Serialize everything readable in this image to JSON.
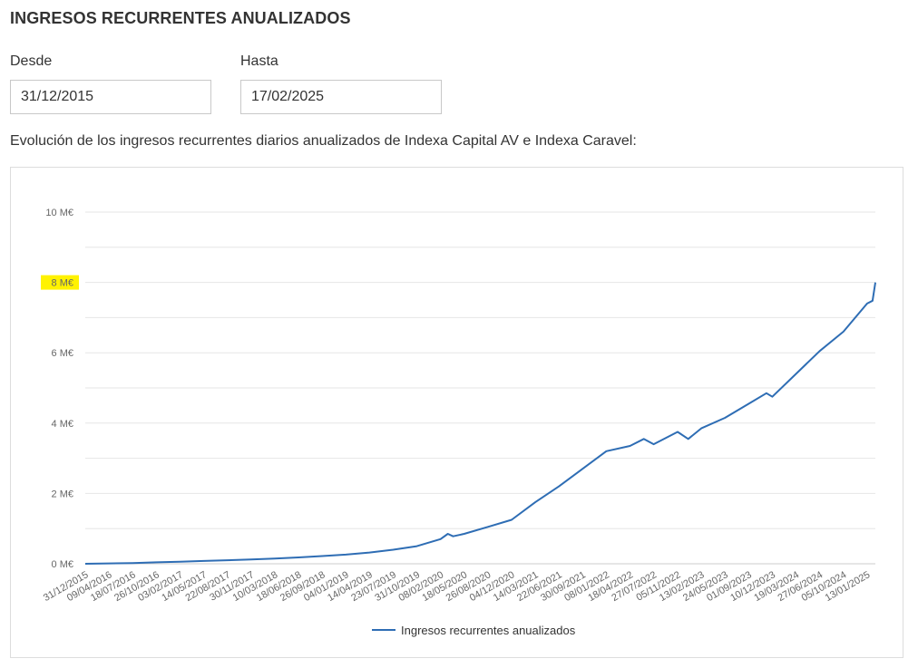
{
  "page": {
    "title": "INGRESOS RECURRENTES ANUALIZADOS",
    "desde_label": "Desde",
    "desde_value": "31/12/2015",
    "hasta_label": "Hasta",
    "hasta_value": "17/02/2025",
    "description": "Evolución de los ingresos recurrentes diarios anualizados de Indexa Capital AV e Indexa Caravel:"
  },
  "chart_data": {
    "type": "line",
    "ylim": [
      0,
      10
    ],
    "yticks": [
      0,
      2,
      4,
      6,
      8,
      10
    ],
    "ytick_labels": [
      "0 M€",
      "2 M€",
      "4 M€",
      "6 M€",
      "8 M€",
      "10 M€"
    ],
    "highlighted_ytick": "8 M€",
    "highlight_color": "#fff200",
    "grid": true,
    "legend_position": "bottom-center",
    "x_dates": [
      "31/12/2015",
      "09/04/2016",
      "18/07/2016",
      "26/10/2016",
      "03/02/2017",
      "14/05/2017",
      "22/08/2017",
      "30/11/2017",
      "10/03/2018",
      "18/06/2018",
      "26/09/2018",
      "04/01/2019",
      "14/04/2019",
      "23/07/2019",
      "31/10/2019",
      "08/02/2020",
      "18/05/2020",
      "26/08/2020",
      "04/12/2020",
      "14/03/2021",
      "22/06/2021",
      "30/09/2021",
      "08/01/2022",
      "18/04/2022",
      "27/07/2022",
      "05/11/2022",
      "13/02/2023",
      "24/05/2023",
      "01/09/2023",
      "10/12/2023",
      "19/03/2024",
      "27/06/2024",
      "05/10/2024",
      "13/01/2025"
    ],
    "series": [
      {
        "name": "Ingresos recurrentes anualizados",
        "color": "#2e6db4",
        "points": [
          [
            "31/12/2015",
            0.0
          ],
          [
            "09/04/2016",
            0.01
          ],
          [
            "18/07/2016",
            0.02
          ],
          [
            "26/10/2016",
            0.04
          ],
          [
            "03/02/2017",
            0.06
          ],
          [
            "14/05/2017",
            0.08
          ],
          [
            "22/08/2017",
            0.1
          ],
          [
            "30/11/2017",
            0.12
          ],
          [
            "10/03/2018",
            0.15
          ],
          [
            "18/06/2018",
            0.18
          ],
          [
            "26/09/2018",
            0.22
          ],
          [
            "04/01/2019",
            0.26
          ],
          [
            "14/04/2019",
            0.32
          ],
          [
            "23/07/2019",
            0.4
          ],
          [
            "31/10/2019",
            0.5
          ],
          [
            "08/02/2020",
            0.7
          ],
          [
            "10/03/2020",
            0.85
          ],
          [
            "01/04/2020",
            0.78
          ],
          [
            "18/05/2020",
            0.85
          ],
          [
            "26/08/2020",
            1.05
          ],
          [
            "04/12/2020",
            1.25
          ],
          [
            "14/03/2021",
            1.75
          ],
          [
            "22/06/2021",
            2.2
          ],
          [
            "30/09/2021",
            2.7
          ],
          [
            "08/01/2022",
            3.2
          ],
          [
            "18/04/2022",
            3.35
          ],
          [
            "15/06/2022",
            3.55
          ],
          [
            "27/07/2022",
            3.4
          ],
          [
            "05/11/2022",
            3.75
          ],
          [
            "20/12/2022",
            3.55
          ],
          [
            "13/02/2023",
            3.85
          ],
          [
            "24/05/2023",
            4.15
          ],
          [
            "01/09/2023",
            4.55
          ],
          [
            "15/11/2023",
            4.85
          ],
          [
            "10/12/2023",
            4.75
          ],
          [
            "19/03/2024",
            5.4
          ],
          [
            "27/06/2024",
            6.05
          ],
          [
            "05/10/2024",
            6.6
          ],
          [
            "13/01/2025",
            7.4
          ],
          [
            "05/02/2025",
            7.48
          ],
          [
            "17/02/2025",
            8.0
          ]
        ]
      }
    ]
  }
}
